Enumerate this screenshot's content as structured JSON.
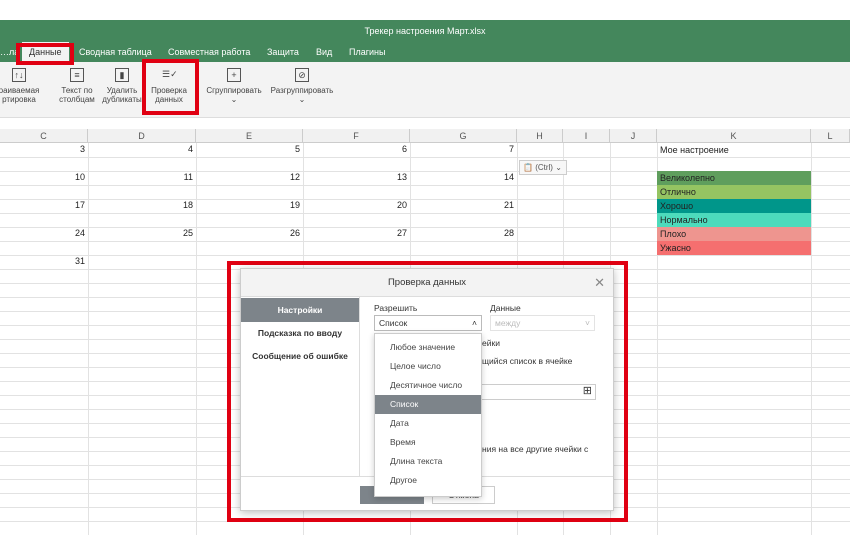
{
  "window": {
    "title": "Трекер настроения Март.xlsx"
  },
  "menu": {
    "items": [
      "…ла",
      "Данные",
      "Сводная таблица",
      "Совместная работа",
      "Защита",
      "Вид",
      "Плагины"
    ],
    "active": "Данные"
  },
  "toolbar": {
    "sort_l1": "раиваемая",
    "sort_l2": "ртировка",
    "text_cols_l1": "Текст по",
    "text_cols_l2": "столбцам",
    "dedup_l1": "Удалить",
    "dedup_l2": "дубликаты",
    "validate_l1": "Проверка",
    "validate_l2": "данных",
    "group": "Сгруппировать",
    "ungroup": "Разгруппировать"
  },
  "sheet": {
    "columns": [
      "C",
      "D",
      "E",
      "F",
      "G",
      "H",
      "I",
      "J",
      "K",
      "L"
    ],
    "rows": [
      [
        "3",
        "4",
        "5",
        "6",
        "7"
      ],
      [
        "10",
        "11",
        "12",
        "13",
        "14"
      ],
      [
        "17",
        "18",
        "19",
        "20",
        "21"
      ],
      [
        "24",
        "25",
        "26",
        "27",
        "28"
      ],
      [
        "31"
      ]
    ],
    "paste_hint": "(Ctrl)",
    "mood_header": "Мое настроение",
    "moods": [
      {
        "label": "Великолепно",
        "color": "#5f9e5d"
      },
      {
        "label": "Отлично",
        "color": "#95c462"
      },
      {
        "label": "Хорошо",
        "color": "#00968a"
      },
      {
        "label": "Нормально",
        "color": "#4ddbbc"
      },
      {
        "label": "Плохо",
        "color": "#ee958f"
      },
      {
        "label": "Ужасно",
        "color": "#f56f6f"
      }
    ]
  },
  "dialog": {
    "title": "Проверка данных",
    "tabs": [
      "Настройки",
      "Подсказка по вводу",
      "Сообщение об ошибке"
    ],
    "allow_label": "Разрешить",
    "allow_value": "Список",
    "data_label": "Данные",
    "data_placeholder": "между",
    "partial1": "ейки",
    "partial2": "щийся список в ячейке",
    "partial3": "ния на все другие ячейки с",
    "options": [
      "Любое значение",
      "Целое число",
      "Десятичное число",
      "Список",
      "Дата",
      "Время",
      "Длина текста",
      "Другое"
    ],
    "selected_option": "Список",
    "ok": "ОК",
    "cancel": "Отмена"
  },
  "highlight_color": "#e00012"
}
